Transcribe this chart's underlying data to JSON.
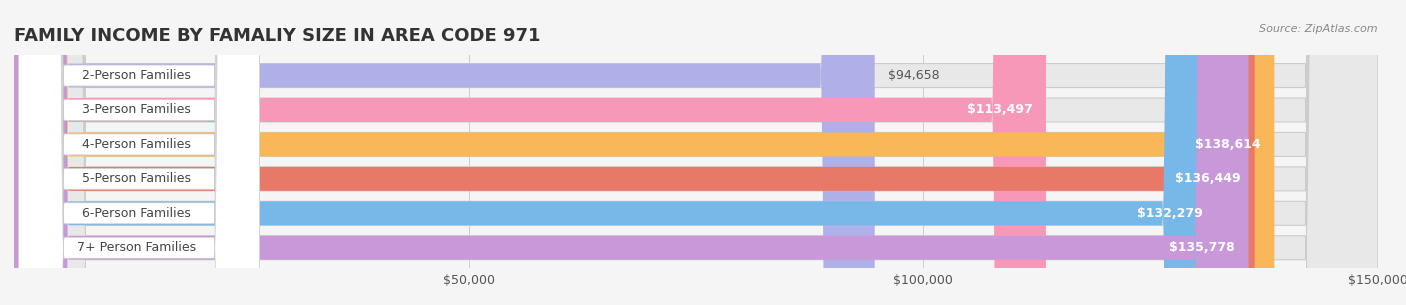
{
  "title": "FAMILY INCOME BY FAMALIY SIZE IN AREA CODE 971",
  "source": "Source: ZipAtlas.com",
  "categories": [
    "2-Person Families",
    "3-Person Families",
    "4-Person Families",
    "5-Person Families",
    "6-Person Families",
    "7+ Person Families"
  ],
  "values": [
    94658,
    113497,
    138614,
    136449,
    132279,
    135778
  ],
  "value_labels": [
    "$94,658",
    "$113,497",
    "$138,614",
    "$136,449",
    "$132,279",
    "$135,778"
  ],
  "bar_colors": [
    "#b0b0e8",
    "#f898b8",
    "#f8b858",
    "#e87868",
    "#78b8e8",
    "#c898d8"
  ],
  "bar_edge_colors": [
    "#9898d8",
    "#f070a0",
    "#f0a030",
    "#d86050",
    "#50a0d8",
    "#b070c0"
  ],
  "background_color": "#f5f5f5",
  "bar_bg_color": "#e8e8e8",
  "xlim": [
    0,
    150000
  ],
  "xticks": [
    0,
    50000,
    100000,
    150000
  ],
  "xticklabels": [
    "",
    "$50,000",
    "$100,000",
    "$150,000"
  ],
  "title_fontsize": 13,
  "label_fontsize": 9,
  "value_fontsize": 9,
  "bar_height": 0.68
}
